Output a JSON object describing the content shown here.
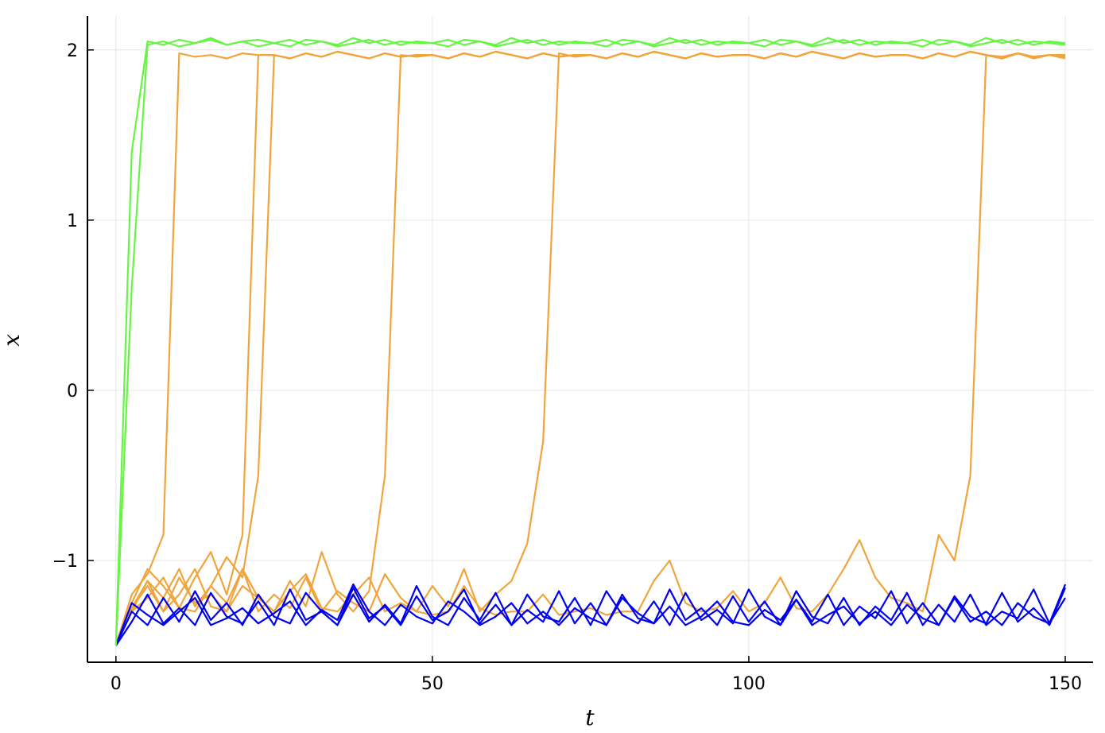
{
  "chart_data": {
    "type": "line",
    "x_label": "t",
    "y_label": "x",
    "x": [
      0,
      2.5,
      5,
      7.5,
      10,
      12.5,
      15,
      17.5,
      20,
      22.5,
      25,
      27.5,
      30,
      32.5,
      35,
      37.5,
      40,
      42.5,
      45,
      47.5,
      50,
      52.5,
      55,
      57.5,
      60,
      62.5,
      65,
      67.5,
      70,
      72.5,
      75,
      77.5,
      80,
      82.5,
      85,
      87.5,
      90,
      92.5,
      95,
      97.5,
      100,
      102.5,
      105,
      107.5,
      110,
      112.5,
      115,
      117.5,
      120,
      122.5,
      125,
      127.5,
      130,
      132.5,
      135,
      137.5,
      140,
      142.5,
      145,
      147.5,
      150
    ],
    "xlim": [
      -4.5,
      154.4
    ],
    "ylim": [
      -1.598,
      2.2
    ],
    "xticks": [
      0,
      50,
      100,
      150
    ],
    "yticks": [
      {
        "value": -1,
        "label": "−1"
      },
      0,
      1,
      2
    ],
    "grid": true,
    "series": [
      {
        "color": "#f0a53c",
        "values": [
          -1.5,
          -1.2,
          -1.08,
          -0.85,
          1.98,
          1.96,
          1.97,
          1.95,
          1.98,
          1.97,
          1.97,
          1.95,
          1.98,
          1.96,
          1.99,
          1.97,
          1.95,
          1.98,
          1.96,
          1.97,
          1.97,
          1.95,
          1.98,
          1.96,
          1.99,
          1.97,
          1.95,
          1.98,
          1.96,
          1.97,
          1.97,
          1.95,
          1.98,
          1.96,
          1.99,
          1.97,
          1.95,
          1.98,
          1.96,
          1.97,
          1.97,
          1.95,
          1.98,
          1.96,
          1.99,
          1.97,
          1.95,
          1.98,
          1.96,
          1.97,
          1.97,
          1.95,
          1.98,
          1.96,
          1.99,
          1.97,
          1.95,
          1.98,
          1.96,
          1.97,
          1.96
        ]
      },
      {
        "color": "#f0a53c",
        "values": [
          -1.5,
          -1.25,
          -1.05,
          -1.15,
          -1.28,
          -1.1,
          -0.95,
          -1.2,
          -0.85,
          1.97,
          1.97,
          1.95,
          1.98,
          1.96,
          1.99,
          1.97,
          1.95,
          1.98,
          1.96,
          1.97,
          1.97,
          1.95,
          1.98,
          1.96,
          1.99,
          1.97,
          1.95,
          1.98,
          1.96,
          1.97,
          1.97,
          1.95,
          1.98,
          1.96,
          1.99,
          1.97,
          1.95,
          1.98,
          1.96,
          1.97,
          1.97,
          1.95,
          1.98,
          1.96,
          1.99,
          1.97,
          1.95,
          1.98,
          1.96,
          1.97,
          1.97,
          1.95,
          1.98,
          1.96,
          1.99,
          1.97,
          1.95,
          1.98,
          1.96,
          1.97,
          1.97
        ]
      },
      {
        "color": "#f0a53c",
        "values": [
          -1.5,
          -1.3,
          -1.12,
          -1.22,
          -1.05,
          -1.27,
          -1.15,
          -0.98,
          -1.1,
          -0.5,
          1.97,
          1.95,
          1.98,
          1.96,
          1.99,
          1.97,
          1.95,
          1.98,
          1.96,
          1.97,
          1.97,
          1.95,
          1.98,
          1.96,
          1.99,
          1.97,
          1.95,
          1.98,
          1.96,
          1.97,
          1.97,
          1.95,
          1.98,
          1.96,
          1.99,
          1.97,
          1.95,
          1.98,
          1.96,
          1.97,
          1.97,
          1.95,
          1.98,
          1.96,
          1.99,
          1.97,
          1.95,
          1.98,
          1.96,
          1.97,
          1.97,
          1.95,
          1.98,
          1.96,
          1.99,
          1.97,
          1.95,
          1.98,
          1.96,
          1.97,
          1.95
        ]
      },
      {
        "color": "#f0a53c",
        "values": [
          -1.5,
          -1.28,
          -1.15,
          -1.3,
          -1.1,
          -1.25,
          -1.2,
          -1.3,
          -1.05,
          -1.22,
          -1.3,
          -1.12,
          -1.27,
          -0.95,
          -1.2,
          -1.3,
          -1.18,
          -0.5,
          1.97,
          1.96,
          1.97,
          1.95,
          1.98,
          1.96,
          1.99,
          1.97,
          1.95,
          1.98,
          1.96,
          1.97,
          1.97,
          1.95,
          1.98,
          1.96,
          1.99,
          1.97,
          1.95,
          1.98,
          1.96,
          1.97,
          1.97,
          1.95,
          1.98,
          1.96,
          1.99,
          1.97,
          1.95,
          1.98,
          1.96,
          1.97,
          1.97,
          1.95,
          1.98,
          1.96,
          1.99,
          1.97,
          1.95,
          1.98,
          1.96,
          1.97,
          1.97
        ]
      },
      {
        "color": "#f0a53c",
        "values": [
          -1.5,
          -1.3,
          -1.22,
          -1.1,
          -1.28,
          -1.3,
          -1.15,
          -1.25,
          -1.05,
          -1.3,
          -1.2,
          -1.28,
          -1.1,
          -1.3,
          -1.18,
          -1.25,
          -1.3,
          -1.08,
          -1.22,
          -1.3,
          -1.15,
          -1.27,
          -1.05,
          -1.3,
          -1.2,
          -1.12,
          -0.9,
          -0.3,
          1.98,
          1.96,
          1.97,
          1.95,
          1.98,
          1.96,
          1.99,
          1.97,
          1.95,
          1.98,
          1.96,
          1.97,
          1.97,
          1.95,
          1.98,
          1.96,
          1.99,
          1.97,
          1.95,
          1.98,
          1.96,
          1.97,
          1.97,
          1.95,
          1.98,
          1.96,
          1.99,
          1.97,
          1.95,
          1.98,
          1.96,
          1.97,
          1.97
        ]
      },
      {
        "color": "#f0a53c",
        "values": [
          -1.5,
          -1.28,
          -1.12,
          -1.3,
          -1.2,
          -1.05,
          -1.27,
          -1.3,
          -1.15,
          -1.22,
          -1.3,
          -1.18,
          -1.08,
          -1.28,
          -1.3,
          -1.2,
          -1.1,
          -1.3,
          -1.25,
          -1.3,
          -1.32,
          -1.3,
          -1.15,
          -1.28,
          -1.32,
          -1.3,
          -1.3,
          -1.2,
          -1.32,
          -1.3,
          -1.28,
          -1.32,
          -1.3,
          -1.3,
          -1.12,
          -1.0,
          -1.25,
          -1.3,
          -1.28,
          -1.18,
          -1.3,
          -1.25,
          -1.1,
          -1.28,
          -1.3,
          -1.2,
          -1.05,
          -0.88,
          -1.1,
          -1.22,
          -1.25,
          -1.3,
          -0.85,
          -1.0,
          -0.5,
          1.97,
          1.96,
          1.98,
          1.95,
          1.97,
          1.96
        ]
      },
      {
        "color": "#0000f0",
        "values": [
          -1.5,
          -1.3,
          -1.38,
          -1.22,
          -1.36,
          -1.18,
          -1.35,
          -1.25,
          -1.38,
          -1.2,
          -1.33,
          -1.37,
          -1.19,
          -1.3,
          -1.38,
          -1.16,
          -1.34,
          -1.27,
          -1.38,
          -1.21,
          -1.35,
          -1.3,
          -1.17,
          -1.37,
          -1.26,
          -1.38,
          -1.2,
          -1.33,
          -1.36,
          -1.22,
          -1.38,
          -1.18,
          -1.32,
          -1.37,
          -1.24,
          -1.38,
          -1.19,
          -1.35,
          -1.29,
          -1.37,
          -1.17,
          -1.33,
          -1.38,
          -1.23,
          -1.36,
          -1.2,
          -1.38,
          -1.27,
          -1.34,
          -1.18,
          -1.37,
          -1.25,
          -1.38,
          -1.21,
          -1.33,
          -1.37,
          -1.19,
          -1.36,
          -1.28,
          -1.38,
          -1.16
        ]
      },
      {
        "color": "#0000f0",
        "values": [
          -1.5,
          -1.36,
          -1.2,
          -1.37,
          -1.28,
          -1.38,
          -1.19,
          -1.33,
          -1.37,
          -1.24,
          -1.38,
          -1.17,
          -1.35,
          -1.3,
          -1.38,
          -1.2,
          -1.36,
          -1.26,
          -1.37,
          -1.15,
          -1.33,
          -1.38,
          -1.22,
          -1.35,
          -1.19,
          -1.38,
          -1.29,
          -1.36,
          -1.18,
          -1.37,
          -1.25,
          -1.38,
          -1.2,
          -1.34,
          -1.37,
          -1.17,
          -1.35,
          -1.28,
          -1.38,
          -1.21,
          -1.36,
          -1.24,
          -1.38,
          -1.18,
          -1.33,
          -1.37,
          -1.22,
          -1.38,
          -1.27,
          -1.35,
          -1.19,
          -1.38,
          -1.26,
          -1.36,
          -1.2,
          -1.38,
          -1.3,
          -1.34,
          -1.17,
          -1.37,
          -1.22
        ]
      },
      {
        "color": "#0000f0",
        "values": [
          -1.5,
          -1.25,
          -1.32,
          -1.38,
          -1.3,
          -1.22,
          -1.38,
          -1.34,
          -1.28,
          -1.37,
          -1.31,
          -1.24,
          -1.38,
          -1.29,
          -1.35,
          -1.14,
          -1.3,
          -1.38,
          -1.26,
          -1.33,
          -1.37,
          -1.24,
          -1.3,
          -1.38,
          -1.33,
          -1.25,
          -1.37,
          -1.3,
          -1.38,
          -1.28,
          -1.34,
          -1.38,
          -1.22,
          -1.31,
          -1.37,
          -1.27,
          -1.38,
          -1.33,
          -1.24,
          -1.36,
          -1.38,
          -1.29,
          -1.35,
          -1.23,
          -1.38,
          -1.32,
          -1.27,
          -1.37,
          -1.3,
          -1.38,
          -1.26,
          -1.34,
          -1.38,
          -1.22,
          -1.36,
          -1.3,
          -1.38,
          -1.25,
          -1.33,
          -1.37,
          -1.14
        ]
      },
      {
        "color": "#66f544",
        "values": [
          -1.5,
          1.4,
          2.05,
          2.03,
          2.06,
          2.04,
          2.07,
          2.03,
          2.05,
          2.06,
          2.04,
          2.02,
          2.06,
          2.05,
          2.03,
          2.07,
          2.04,
          2.06,
          2.03,
          2.05,
          2.04,
          2.02,
          2.06,
          2.05,
          2.03,
          2.07,
          2.04,
          2.06,
          2.03,
          2.05,
          2.04,
          2.02,
          2.06,
          2.05,
          2.03,
          2.07,
          2.04,
          2.06,
          2.03,
          2.05,
          2.04,
          2.02,
          2.06,
          2.05,
          2.03,
          2.07,
          2.04,
          2.06,
          2.03,
          2.05,
          2.04,
          2.02,
          2.06,
          2.05,
          2.03,
          2.07,
          2.04,
          2.06,
          2.03,
          2.05,
          2.04
        ]
      },
      {
        "color": "#66f544",
        "values": [
          -1.5,
          0.6,
          2.03,
          2.05,
          2.02,
          2.04,
          2.06,
          2.03,
          2.05,
          2.02,
          2.04,
          2.06,
          2.03,
          2.05,
          2.02,
          2.04,
          2.06,
          2.03,
          2.05,
          2.04,
          2.04,
          2.06,
          2.03,
          2.05,
          2.02,
          2.04,
          2.06,
          2.03,
          2.05,
          2.04,
          2.04,
          2.06,
          2.03,
          2.05,
          2.02,
          2.04,
          2.06,
          2.03,
          2.05,
          2.04,
          2.04,
          2.06,
          2.03,
          2.05,
          2.02,
          2.04,
          2.06,
          2.03,
          2.05,
          2.04,
          2.04,
          2.06,
          2.03,
          2.05,
          2.02,
          2.04,
          2.06,
          2.03,
          2.05,
          2.04,
          2.03
        ]
      }
    ]
  }
}
